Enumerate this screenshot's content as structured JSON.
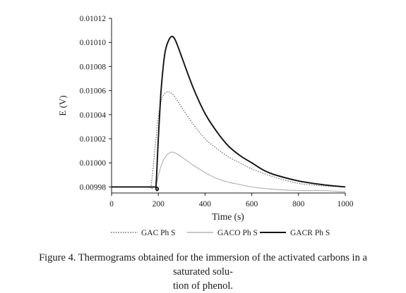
{
  "chart_data": {
    "type": "line",
    "title": "",
    "xlabel": "Time (s)",
    "ylabel": "E (V)",
    "xlim": [
      0,
      1000
    ],
    "ylim": [
      0.009975,
      0.01012
    ],
    "x_ticks": [
      0,
      200,
      400,
      600,
      800,
      1000
    ],
    "x_tick_labels": [
      "0",
      "200",
      "400",
      "600",
      "800",
      "1000"
    ],
    "y_ticks": [
      0.00998,
      0.01,
      0.01002,
      0.01004,
      0.01006,
      0.01008,
      0.0101,
      0.01012
    ],
    "y_tick_labels": [
      "0.00998",
      "0.01000",
      "0.01002",
      "0.01004",
      "0.01006",
      "0.01008",
      "0.01010",
      "0.01012"
    ],
    "grid": false,
    "legend_position": "bottom",
    "series": [
      {
        "name": "GAC Ph S",
        "color": "#707070",
        "style": "dotted",
        "x": [
          0,
          160,
          168,
          180,
          195,
          210,
          225,
          240,
          255,
          270,
          300,
          350,
          400,
          450,
          500,
          550,
          600,
          700,
          800,
          900,
          1000
        ],
        "y": [
          0.00998,
          0.00998,
          0.00998,
          0.01,
          0.01003,
          0.01005,
          0.010057,
          0.010059,
          0.010058,
          0.010055,
          0.010046,
          0.010032,
          0.01002,
          0.010012,
          0.010005,
          0.01,
          0.009995,
          0.009988,
          0.009983,
          0.009981,
          0.00998
        ]
      },
      {
        "name": "GACO Ph S",
        "color": "#b4b4b4",
        "style": "solid",
        "x": [
          0,
          180,
          188,
          195,
          205,
          215,
          230,
          245,
          260,
          275,
          300,
          350,
          400,
          450,
          500,
          550,
          600,
          700,
          800,
          900,
          1000
        ],
        "y": [
          0.00998,
          0.00998,
          0.00998,
          0.009985,
          0.009993,
          0.009999,
          0.010005,
          0.010008,
          0.010009,
          0.010008,
          0.010005,
          0.009998,
          0.009992,
          0.009987,
          0.009984,
          0.009982,
          0.00998,
          0.009978,
          0.009977,
          0.009977,
          0.009976
        ]
      },
      {
        "name": "GACR Ph S",
        "color": "#111111",
        "style": "solid",
        "x": [
          0,
          185,
          190,
          200,
          210,
          220,
          230,
          245,
          260,
          275,
          300,
          350,
          400,
          450,
          500,
          550,
          600,
          650,
          700,
          800,
          900,
          1000
        ],
        "y": [
          0.00998,
          0.00998,
          0.00998,
          0.01002,
          0.010055,
          0.010078,
          0.010093,
          0.010102,
          0.010105,
          0.010101,
          0.010088,
          0.010062,
          0.010041,
          0.010026,
          0.010014,
          0.010006,
          0.01,
          0.009994,
          0.00999,
          0.009985,
          0.009982,
          0.00998
        ]
      }
    ]
  },
  "caption": {
    "line1": "Figure 4. Thermograms obtained for the immersion of the activated carbons in a saturated solu-",
    "line2": "tion of phenol."
  }
}
